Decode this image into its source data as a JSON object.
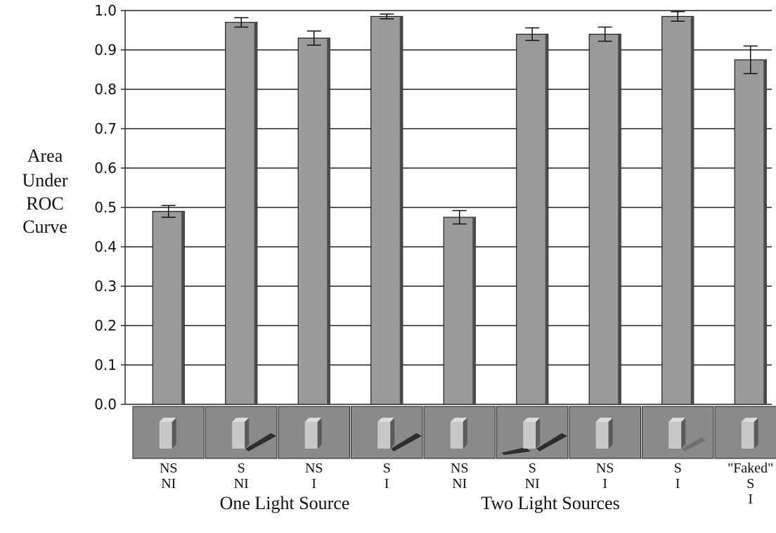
{
  "chart_data": {
    "type": "bar",
    "title": "",
    "ylabel": [
      "Area",
      "Under",
      "ROC",
      "Curve"
    ],
    "ylim": [
      0,
      1.0
    ],
    "yticks": [
      "0.0",
      "0.1",
      "0.2",
      "0.3",
      "0.4",
      "0.5",
      "0.6",
      "0.7",
      "0.8",
      "0.9",
      "1.0"
    ],
    "grid": true,
    "categories": [
      [
        "NS",
        "NI"
      ],
      [
        "S",
        "NI"
      ],
      [
        "NS",
        "I"
      ],
      [
        "S",
        "I"
      ],
      [
        "NS",
        "NI"
      ],
      [
        "S",
        "NI"
      ],
      [
        "NS",
        "I"
      ],
      [
        "S",
        "I"
      ],
      [
        "\"Faked\"",
        "S",
        "I"
      ]
    ],
    "values": [
      0.49,
      0.97,
      0.93,
      0.985,
      0.475,
      0.94,
      0.94,
      0.985,
      0.875
    ],
    "errors": [
      0.015,
      0.012,
      0.018,
      0.006,
      0.017,
      0.016,
      0.018,
      0.012,
      0.035
    ],
    "group_labels": [
      "One Light Source",
      "Two Light Sources"
    ],
    "colors": {
      "bar": "#9a9a9a",
      "bar_shadow": "#4a4a4a",
      "grid": "#222222",
      "thumb_bg": "#8a8a8a",
      "thumb_cube": "#c8c8c8",
      "thumb_shadow": "#2e2e2e"
    },
    "thumbnails": [
      {
        "shadow": "none"
      },
      {
        "shadow": "long"
      },
      {
        "shadow": "none"
      },
      {
        "shadow": "long"
      },
      {
        "shadow": "none"
      },
      {
        "shadow": "double"
      },
      {
        "shadow": "none"
      },
      {
        "shadow": "faint"
      },
      {
        "shadow": "none"
      }
    ]
  }
}
